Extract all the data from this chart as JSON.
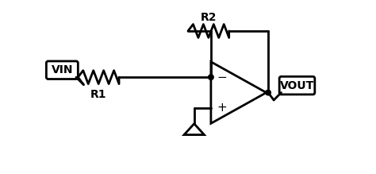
{
  "bg_color": "#ffffff",
  "line_color": "#000000",
  "line_width": 2.0,
  "label_fontsize": 10,
  "r_label_fontsize": 10,
  "fig_width": 4.74,
  "fig_height": 2.19,
  "dpi": 100,
  "vin_label": "VIN",
  "vout_label": "VOUT",
  "r1_label": "R1",
  "r2_label": "R2",
  "minus_label": "−",
  "plus_label": "+"
}
